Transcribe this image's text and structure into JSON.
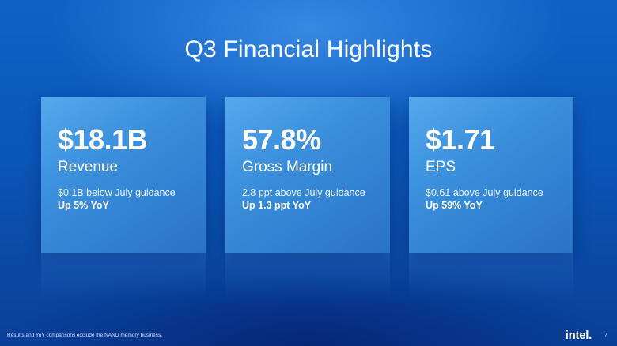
{
  "slide": {
    "title": "Q3 Financial Highlights",
    "cards": [
      {
        "value": "$18.1B",
        "label": "Revenue",
        "note": "$0.1B below July guidance",
        "note_strong": "Up 5% YoY"
      },
      {
        "value": "57.8%",
        "label": "Gross Margin",
        "note": "2.8 ppt above July guidance",
        "note_strong": "Up 1.3 ppt YoY"
      },
      {
        "value": "$1.71",
        "label": "EPS",
        "note": "$0.61 above July guidance",
        "note_strong": "Up 59% YoY"
      }
    ],
    "footnote": "Results and YoY comparisons exclude the NAND memory business.",
    "logo_text": "intel.",
    "page_number": "7"
  },
  "colors": {
    "background": "#0a56b8",
    "card": "#3b8fdc",
    "text": "#ffffff"
  }
}
